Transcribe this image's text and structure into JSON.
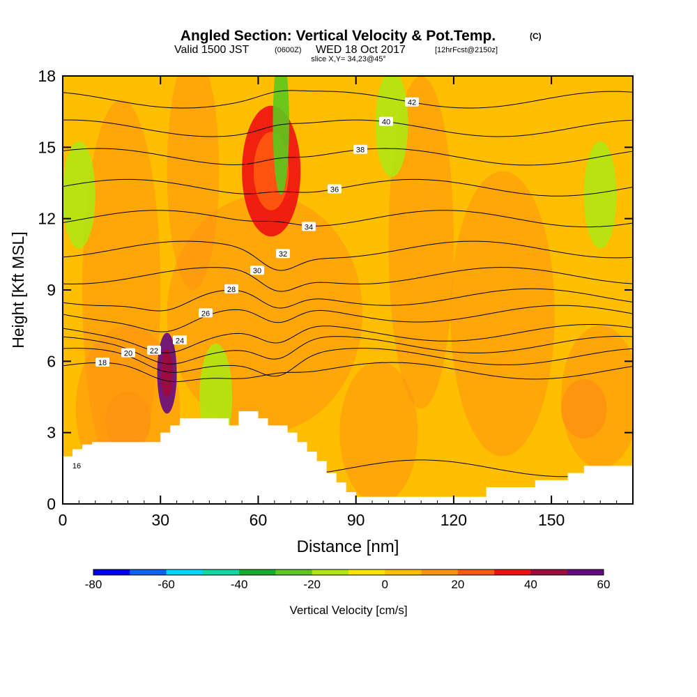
{
  "chart_data": {
    "type": "heatmap",
    "title": "Angled Section: Vertical Velocity & Pot.Temp.",
    "title_suffix": "(C)",
    "subtitle_valid": "Valid 1500 JST",
    "subtitle_utc": "(0600Z)",
    "subtitle_date": "WED 18 Oct 2017",
    "subtitle_fcst": "[12hrFcst@2150z]",
    "subtitle_slice": "slice X,Y= 34,23@45°",
    "xlabel": "Distance [nm]",
    "ylabel": "Height [Kft MSL]",
    "xlim": [
      0,
      175
    ],
    "ylim": [
      0,
      18
    ],
    "xticks": [
      0,
      30,
      60,
      90,
      120,
      150
    ],
    "yticks": [
      0,
      3,
      6,
      9,
      12,
      15,
      18
    ],
    "colorbar": {
      "label": "Vertical Velocity [cm/s]",
      "ticks": [
        -80,
        -60,
        -40,
        -20,
        0,
        20,
        40,
        60
      ],
      "levels": [
        -80,
        -70,
        -60,
        -50,
        -40,
        -30,
        -20,
        -10,
        0,
        10,
        20,
        30,
        40,
        50,
        60
      ],
      "colors": [
        "#0000ee",
        "#0a64f0",
        "#00d4ff",
        "#10d8a0",
        "#12b02c",
        "#5cc81e",
        "#b0e612",
        "#ffe400",
        "#ffbe00",
        "#ff9410",
        "#ff5a10",
        "#ee1010",
        "#a00a3c",
        "#640a82"
      ]
    },
    "background_range": "0 to 10",
    "velocity_features": [
      {
        "type": "updraft",
        "x": 64,
        "y": 14,
        "value_range": "30 to 40"
      },
      {
        "type": "updraft",
        "x": 32,
        "y": 5.5,
        "value_range": "50 to 60"
      },
      {
        "type": "downdraft",
        "x": 67,
        "y": 16,
        "value_range": "-30 to -20"
      },
      {
        "type": "downdraft",
        "x": 5,
        "y": 13,
        "value_range": "-20 to -10"
      },
      {
        "type": "downdraft",
        "x": 165,
        "y": 13,
        "value_range": "-20 to -10"
      },
      {
        "type": "downdraft",
        "x": 47,
        "y": 4.5,
        "value_range": "-20 to -10"
      },
      {
        "type": "downdraft",
        "x": 101,
        "y": 16,
        "value_range": "-20 to -10"
      },
      {
        "type": "weak updraft",
        "x": 160,
        "y": 4,
        "value_range": "10 to 20"
      },
      {
        "type": "weak updraft",
        "x": 20,
        "y": 3.5,
        "value_range": "10 to 20"
      }
    ],
    "theta_contours": [
      {
        "label": "16",
        "y": 1.5
      },
      {
        "label": "18",
        "y": 5.6
      },
      {
        "label": "20",
        "y": 6.2
      },
      {
        "label": "22",
        "y": 6.7
      },
      {
        "label": "24",
        "y": 7.2
      },
      {
        "label": "26",
        "y": 8.0
      },
      {
        "label": "28",
        "y": 8.7
      },
      {
        "label": "30",
        "y": 9.6
      },
      {
        "label": "32",
        "y": 10.7
      },
      {
        "label": "34",
        "y": 12.0
      },
      {
        "label": "36",
        "y": 13.3
      },
      {
        "label": "38",
        "y": 14.6
      },
      {
        "label": "40",
        "y": 15.8
      },
      {
        "label": "42",
        "y": 17.0
      }
    ],
    "terrain_profile": {
      "x": [
        0,
        3,
        6,
        9,
        12,
        27,
        30,
        33,
        36,
        42,
        48,
        51,
        54,
        60,
        63,
        66,
        69,
        72,
        75,
        78,
        81,
        84,
        87,
        90,
        130,
        145,
        155,
        160,
        175
      ],
      "height": [
        2.0,
        2.3,
        2.5,
        2.6,
        2.6,
        2.6,
        3.0,
        3.3,
        3.6,
        3.6,
        3.6,
        3.3,
        3.9,
        3.6,
        3.3,
        3.3,
        3.0,
        2.6,
        2.2,
        1.8,
        1.3,
        0.9,
        0.5,
        0.3,
        0.7,
        1.0,
        1.3,
        1.6,
        1.6
      ]
    },
    "grid": false
  }
}
